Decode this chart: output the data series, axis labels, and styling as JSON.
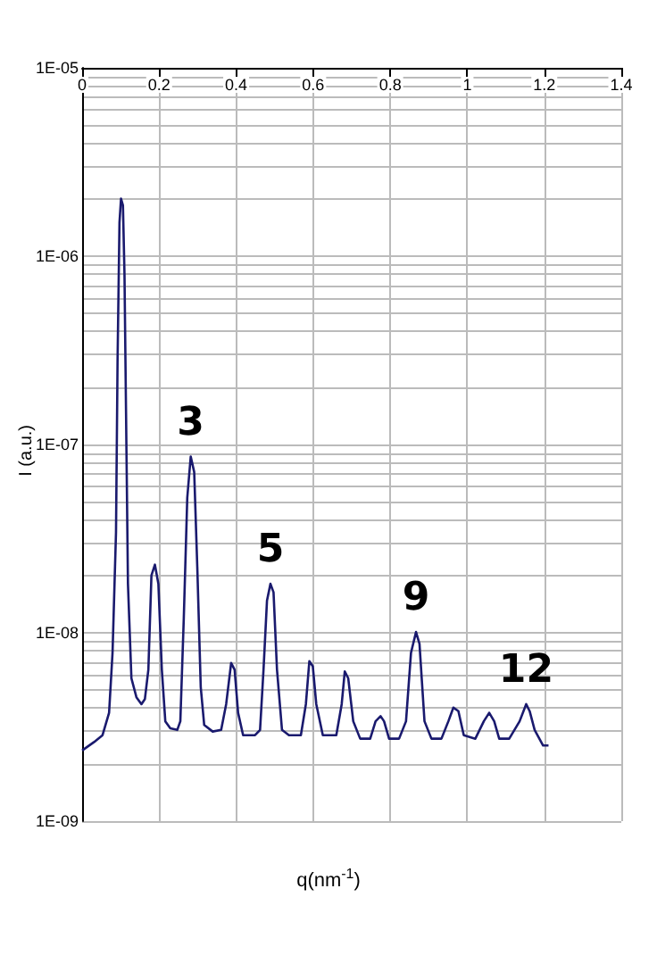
{
  "chart_data": {
    "type": "line",
    "xlabel": "q(nm$^{-1}$)",
    "ylabel": "I (a.u.)",
    "x": [
      0,
      0.031,
      0.053,
      0.07,
      0.079,
      0.088,
      0.092,
      0.097,
      0.101,
      0.106,
      0.11,
      0.114,
      0.119,
      0.128,
      0.141,
      0.154,
      0.163,
      0.172,
      0.18,
      0.189,
      0.198,
      0.207,
      0.216,
      0.229,
      0.247,
      0.255,
      0.264,
      0.273,
      0.282,
      0.291,
      0.299,
      0.308,
      0.317,
      0.339,
      0.361,
      0.374,
      0.387,
      0.396,
      0.405,
      0.418,
      0.449,
      0.462,
      0.471,
      0.48,
      0.489,
      0.497,
      0.506,
      0.519,
      0.537,
      0.568,
      0.581,
      0.59,
      0.599,
      0.608,
      0.625,
      0.66,
      0.674,
      0.682,
      0.691,
      0.704,
      0.722,
      0.748,
      0.762,
      0.775,
      0.784,
      0.797,
      0.823,
      0.841,
      0.854,
      0.867,
      0.876,
      0.889,
      0.907,
      0.933,
      0.951,
      0.964,
      0.977,
      0.991,
      1.021,
      1.043,
      1.057,
      1.07,
      1.083,
      1.109,
      1.136,
      1.153,
      1.162,
      1.175,
      1.197,
      1.211
    ],
    "series": [
      {
        "color": "#1a1a6e",
        "values": [
          2.37e-09,
          2.63e-09,
          2.86e-09,
          3.76e-09,
          7.85e-09,
          3.42e-08,
          2.8e-07,
          1.51e-06,
          2.02e-06,
          1.86e-06,
          8.02e-07,
          1.49e-07,
          1.82e-08,
          5.73e-09,
          4.55e-09,
          4.18e-09,
          4.45e-09,
          6.37e-09,
          2.02e-08,
          2.3e-08,
          1.82e-08,
          6.37e-09,
          3.39e-09,
          3.11e-09,
          3.05e-09,
          3.39e-09,
          1.2e-08,
          5.21e-08,
          8.63e-08,
          7.14e-08,
          2.25e-08,
          5.15e-09,
          3.24e-09,
          2.99e-09,
          3.05e-09,
          4.18e-09,
          6.92e-09,
          6.37e-09,
          3.76e-09,
          2.86e-09,
          2.86e-09,
          3.05e-09,
          6.37e-09,
          1.48e-08,
          1.82e-08,
          1.64e-08,
          6.37e-09,
          3.05e-09,
          2.86e-09,
          2.86e-09,
          4.18e-09,
          7.07e-09,
          6.64e-09,
          4.18e-09,
          2.86e-09,
          2.86e-09,
          4.18e-09,
          6.24e-09,
          5.73e-09,
          3.39e-09,
          2.74e-09,
          2.74e-09,
          3.39e-09,
          3.61e-09,
          3.39e-09,
          2.74e-09,
          2.74e-09,
          3.39e-09,
          7.85e-09,
          1.01e-08,
          8.73e-09,
          3.39e-09,
          2.74e-09,
          2.74e-09,
          3.39e-09,
          4.01e-09,
          3.84e-09,
          2.86e-09,
          2.74e-09,
          3.39e-09,
          3.76e-09,
          3.39e-09,
          2.74e-09,
          2.74e-09,
          3.39e-09,
          4.18e-09,
          3.84e-09,
          3.05e-09,
          2.52e-09,
          2.52e-09
        ]
      }
    ],
    "xlim": [
      0,
      1.4
    ],
    "xticks": [
      0,
      0.2,
      0.4,
      0.6,
      0.8,
      1,
      1.2,
      1.4
    ],
    "ylim": [
      1e-09,
      1e-05
    ],
    "log": true,
    "yticks": [
      {
        "value": 1e-09,
        "label": "1E-09"
      },
      {
        "value": 2e-09,
        "label": null
      },
      {
        "value": 3e-09,
        "label": null
      },
      {
        "value": 4e-09,
        "label": null
      },
      {
        "value": 5e-09,
        "label": null
      },
      {
        "value": 6e-09,
        "label": null
      },
      {
        "value": 7e-09,
        "label": null
      },
      {
        "value": 8e-09,
        "label": null
      },
      {
        "value": 9e-09,
        "label": null
      },
      {
        "value": 1e-08,
        "label": "1E-08"
      },
      {
        "value": 2e-08,
        "label": null
      },
      {
        "value": 3e-08,
        "label": null
      },
      {
        "value": 4e-08,
        "label": null
      },
      {
        "value": 5e-08,
        "label": null
      },
      {
        "value": 6e-08,
        "label": null
      },
      {
        "value": 7e-08,
        "label": null
      },
      {
        "value": 8e-08,
        "label": null
      },
      {
        "value": 9e-08,
        "label": null
      },
      {
        "value": 1e-07,
        "label": "1E-07"
      },
      {
        "value": 2e-07,
        "label": null
      },
      {
        "value": 3e-07,
        "label": null
      },
      {
        "value": 4e-07,
        "label": null
      },
      {
        "value": 5e-07,
        "label": null
      },
      {
        "value": 6e-07,
        "label": null
      },
      {
        "value": 7e-07,
        "label": null
      },
      {
        "value": 8e-07,
        "label": null
      },
      {
        "value": 9e-07,
        "label": null
      },
      {
        "value": 1e-06,
        "label": "1E-06"
      },
      {
        "value": 2e-06,
        "label": null
      },
      {
        "value": 3e-06,
        "label": null
      },
      {
        "value": 4e-06,
        "label": null
      },
      {
        "value": 5e-06,
        "label": null
      },
      {
        "value": 6e-06,
        "label": null
      },
      {
        "value": 7e-06,
        "label": null
      },
      {
        "value": 8e-06,
        "label": null
      },
      {
        "value": 9e-06,
        "label": null
      },
      {
        "value": 1e-05,
        "label": "1E-05"
      }
    ],
    "grid": true,
    "marker": "none",
    "line_style": "solid",
    "annotations": [
      {
        "text": "3",
        "x": 0.282,
        "y": 8.63e-08
      },
      {
        "text": "5",
        "x": 0.489,
        "y": 1.82e-08
      },
      {
        "text": "9",
        "x": 0.867,
        "y": 1.01e-08
      },
      {
        "text": "12",
        "x": 1.153,
        "y": 4.18e-09
      }
    ]
  }
}
